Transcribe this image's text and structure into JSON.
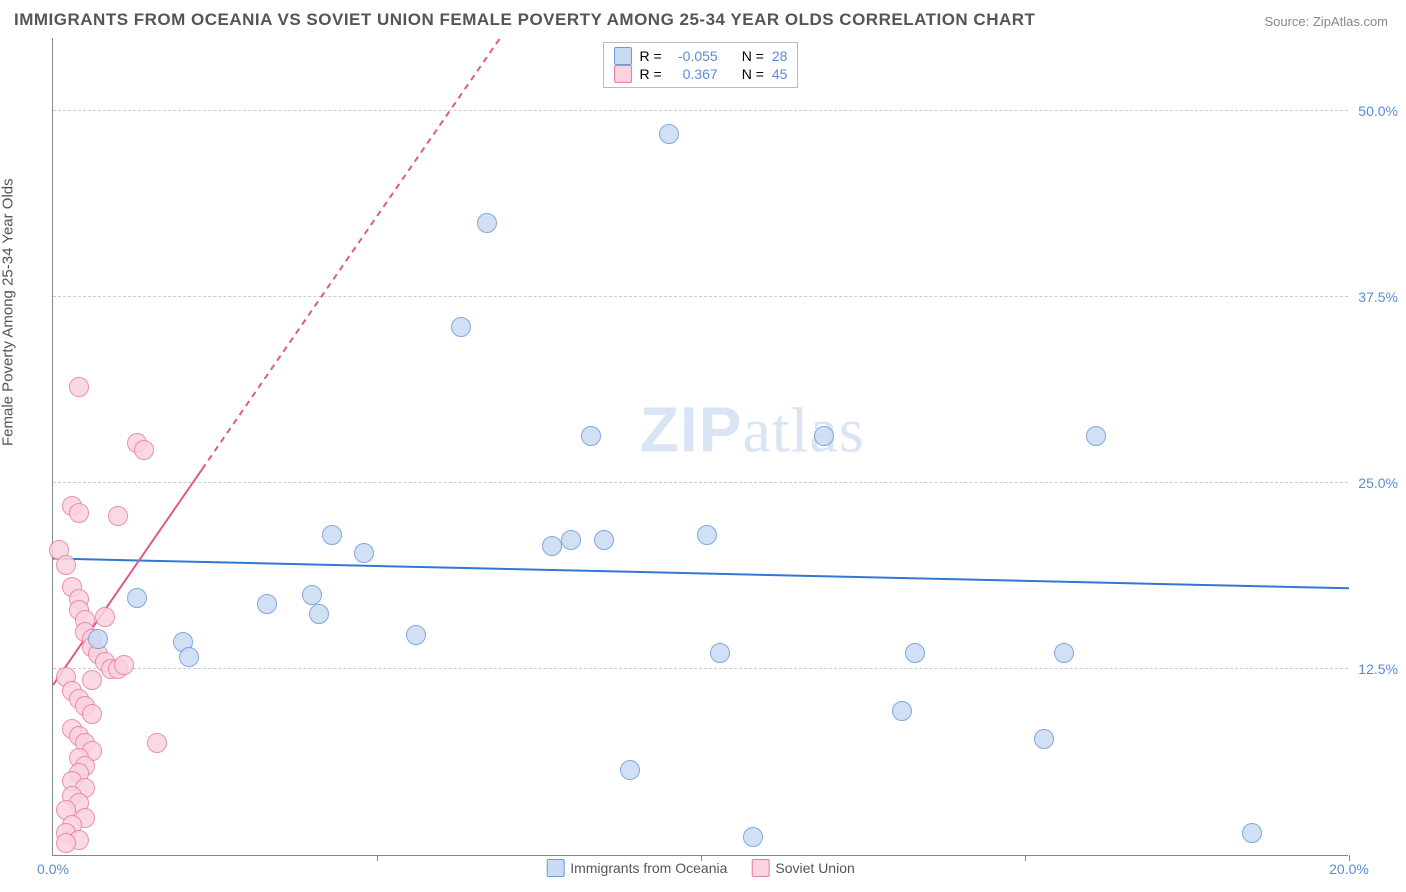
{
  "title": "IMMIGRANTS FROM OCEANIA VS SOVIET UNION FEMALE POVERTY AMONG 25-34 YEAR OLDS CORRELATION CHART",
  "source_label": "Source: ZipAtlas.com",
  "ylabel": "Female Poverty Among 25-34 Year Olds",
  "watermark_a": "ZIP",
  "watermark_b": "atlas",
  "chart": {
    "type": "scatter",
    "background_color": "#ffffff",
    "grid_color": "#cccccc",
    "axis_color": "#888888",
    "xlim": [
      0,
      20
    ],
    "ylim": [
      0,
      55
    ],
    "xticks": [
      0,
      20
    ],
    "xtick_labels": [
      "0.0%",
      "20.0%"
    ],
    "xtick_marks": [
      5,
      10,
      15,
      20
    ],
    "yticks": [
      12.5,
      25,
      37.5,
      50
    ],
    "ytick_labels": [
      "12.5%",
      "25.0%",
      "37.5%",
      "50.0%"
    ],
    "title_fontsize": 17,
    "label_fontsize": 15,
    "tick_fontsize": 14,
    "tick_color": "#5b8dd6",
    "marker_radius": 10,
    "marker_border_width": 1.5,
    "line_width": 2
  },
  "series": {
    "oceania": {
      "label": "Immigrants from Oceania",
      "fill": "#c9dbf3",
      "stroke": "#6b9bd8",
      "line_color": "#2f78d6",
      "R": "-0.055",
      "N": "28",
      "points": [
        [
          9.5,
          48.5
        ],
        [
          6.7,
          42.5
        ],
        [
          6.3,
          35.5
        ],
        [
          8.3,
          28.2
        ],
        [
          11.9,
          28.2
        ],
        [
          16.1,
          28.2
        ],
        [
          4.3,
          21.5
        ],
        [
          4.8,
          20.3
        ],
        [
          7.7,
          20.8
        ],
        [
          8.0,
          21.2
        ],
        [
          8.5,
          21.2
        ],
        [
          10.1,
          21.5
        ],
        [
          5.6,
          14.8
        ],
        [
          1.3,
          17.3
        ],
        [
          2.0,
          14.3
        ],
        [
          2.1,
          13.3
        ],
        [
          3.3,
          16.9
        ],
        [
          4.0,
          17.5
        ],
        [
          4.1,
          16.2
        ],
        [
          10.3,
          13.6
        ],
        [
          13.3,
          13.6
        ],
        [
          8.9,
          5.7
        ],
        [
          10.8,
          1.2
        ],
        [
          13.1,
          9.7
        ],
        [
          15.6,
          13.6
        ],
        [
          15.3,
          7.8
        ],
        [
          18.5,
          1.5
        ],
        [
          0.7,
          14.5
        ]
      ],
      "regression": {
        "x1": 0,
        "y1": 20.0,
        "x2": 20,
        "y2": 18.0,
        "dashed": false
      }
    },
    "soviet": {
      "label": "Soviet Union",
      "fill": "#fbd3df",
      "stroke": "#e87da1",
      "line_color": "#e05a85",
      "R": "0.367",
      "N": "45",
      "points": [
        [
          0.4,
          31.5
        ],
        [
          1.3,
          27.7
        ],
        [
          1.4,
          27.2
        ],
        [
          0.3,
          23.5
        ],
        [
          0.4,
          23.0
        ],
        [
          1.0,
          22.8
        ],
        [
          0.1,
          20.5
        ],
        [
          0.2,
          19.5
        ],
        [
          0.3,
          18.0
        ],
        [
          0.4,
          17.2
        ],
        [
          0.4,
          16.5
        ],
        [
          0.5,
          15.8
        ],
        [
          0.5,
          15.0
        ],
        [
          0.6,
          14.5
        ],
        [
          0.6,
          14.0
        ],
        [
          0.7,
          13.5
        ],
        [
          0.8,
          13.0
        ],
        [
          0.9,
          12.5
        ],
        [
          1.0,
          12.5
        ],
        [
          1.1,
          12.8
        ],
        [
          0.2,
          12.0
        ],
        [
          0.3,
          11.0
        ],
        [
          0.4,
          10.5
        ],
        [
          0.5,
          10.0
        ],
        [
          0.6,
          9.5
        ],
        [
          0.3,
          8.5
        ],
        [
          0.4,
          8.0
        ],
        [
          0.5,
          7.5
        ],
        [
          0.6,
          7.0
        ],
        [
          0.4,
          6.5
        ],
        [
          0.5,
          6.0
        ],
        [
          0.4,
          5.5
        ],
        [
          0.3,
          5.0
        ],
        [
          0.5,
          4.5
        ],
        [
          0.3,
          4.0
        ],
        [
          0.4,
          3.5
        ],
        [
          0.2,
          3.0
        ],
        [
          0.5,
          2.5
        ],
        [
          0.3,
          2.0
        ],
        [
          0.2,
          1.5
        ],
        [
          1.6,
          7.5
        ],
        [
          0.4,
          1.0
        ],
        [
          0.2,
          0.8
        ],
        [
          0.6,
          11.8
        ],
        [
          0.8,
          16.0
        ]
      ],
      "regression_solid": {
        "x1": 0,
        "y1": 11.5,
        "x2": 2.3,
        "y2": 26.0,
        "dashed": false
      },
      "regression_dashed": {
        "x1": 2.3,
        "y1": 26.0,
        "x2": 6.9,
        "y2": 55.0,
        "dashed": true
      }
    }
  },
  "legend_top": {
    "r_label": "R =",
    "n_label": "N ="
  }
}
